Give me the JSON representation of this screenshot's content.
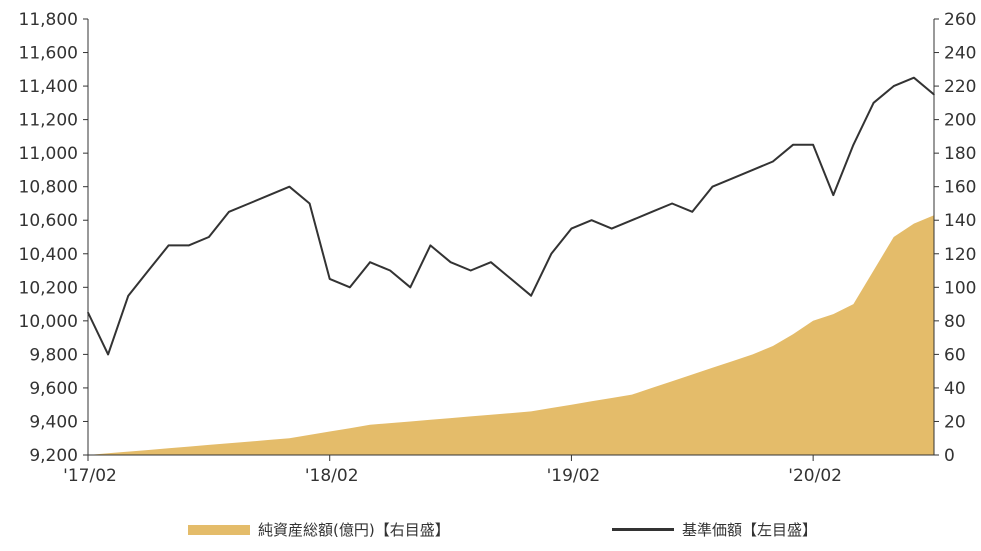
{
  "colors": {
    "nav_line": "#333333",
    "assets_fill": "#e4bc6a",
    "axis": "#333333",
    "text": "#333333"
  },
  "legend": {
    "assets_label": "純資産総額(億円)【右目盛】",
    "nav_label": "基準価額【左目盛】"
  },
  "chart_data": {
    "type": "line",
    "left_axis": {
      "range": [
        9200,
        11800
      ],
      "ticks": [
        "9,200",
        "9,400",
        "9,600",
        "9,800",
        "10,000",
        "10,200",
        "10,400",
        "10,600",
        "10,800",
        "11,000",
        "11,200",
        "11,400",
        "11,600",
        "11,800"
      ]
    },
    "right_axis": {
      "range": [
        0,
        260
      ],
      "ticks": [
        "0",
        "20",
        "40",
        "60",
        "80",
        "100",
        "120",
        "140",
        "160",
        "180",
        "200",
        "220",
        "240",
        "260"
      ]
    },
    "x_axis": {
      "range": [
        "2017-02",
        "2020-08"
      ],
      "ticks": [
        {
          "label": "'17/02",
          "date": "2017-02"
        },
        {
          "label": "'18/02",
          "date": "2018-02"
        },
        {
          "label": "'19/02",
          "date": "2019-02"
        },
        {
          "label": "'20/02",
          "date": "2020-02"
        }
      ]
    },
    "series": [
      {
        "name": "基準価額【左目盛】",
        "axis": "left",
        "kind": "line",
        "x": [
          "2017-02",
          "2017-03",
          "2017-04",
          "2017-05",
          "2017-06",
          "2017-07",
          "2017-08",
          "2017-09",
          "2017-10",
          "2017-11",
          "2017-12",
          "2018-01",
          "2018-02",
          "2018-03",
          "2018-04",
          "2018-05",
          "2018-06",
          "2018-07",
          "2018-08",
          "2018-09",
          "2018-10",
          "2018-11",
          "2018-12",
          "2019-01",
          "2019-02",
          "2019-03",
          "2019-04",
          "2019-05",
          "2019-06",
          "2019-07",
          "2019-08",
          "2019-09",
          "2019-10",
          "2019-11",
          "2019-12",
          "2020-01",
          "2020-02",
          "2020-03",
          "2020-04",
          "2020-05",
          "2020-06",
          "2020-07",
          "2020-08"
        ],
        "values": [
          10050,
          9800,
          10150,
          10300,
          10450,
          10450,
          10500,
          10650,
          10700,
          10750,
          10800,
          10700,
          10250,
          10200,
          10350,
          10300,
          10200,
          10450,
          10350,
          10300,
          10350,
          10250,
          10150,
          10400,
          10550,
          10600,
          10550,
          10600,
          10650,
          10700,
          10650,
          10800,
          10850,
          10900,
          10950,
          11050,
          11050,
          10750,
          11050,
          11300,
          11400,
          11450,
          11350
        ]
      },
      {
        "name": "純資産総額(億円)【右目盛】",
        "axis": "right",
        "kind": "area",
        "x": [
          "2017-02",
          "2017-03",
          "2017-04",
          "2017-05",
          "2017-06",
          "2017-07",
          "2017-08",
          "2017-09",
          "2017-10",
          "2017-11",
          "2017-12",
          "2018-01",
          "2018-02",
          "2018-03",
          "2018-04",
          "2018-05",
          "2018-06",
          "2018-07",
          "2018-08",
          "2018-09",
          "2018-10",
          "2018-11",
          "2018-12",
          "2019-01",
          "2019-02",
          "2019-03",
          "2019-04",
          "2019-05",
          "2019-06",
          "2019-07",
          "2019-08",
          "2019-09",
          "2019-10",
          "2019-11",
          "2019-12",
          "2020-01",
          "2020-02",
          "2020-03",
          "2020-04",
          "2020-05",
          "2020-06",
          "2020-07",
          "2020-08"
        ],
        "values": [
          0,
          1,
          2,
          3,
          4,
          5,
          6,
          7,
          8,
          9,
          10,
          12,
          14,
          16,
          18,
          19,
          20,
          21,
          22,
          23,
          24,
          25,
          26,
          28,
          30,
          32,
          34,
          36,
          40,
          44,
          48,
          52,
          56,
          60,
          65,
          72,
          80,
          84,
          90,
          110,
          130,
          138,
          143
        ]
      }
    ]
  }
}
